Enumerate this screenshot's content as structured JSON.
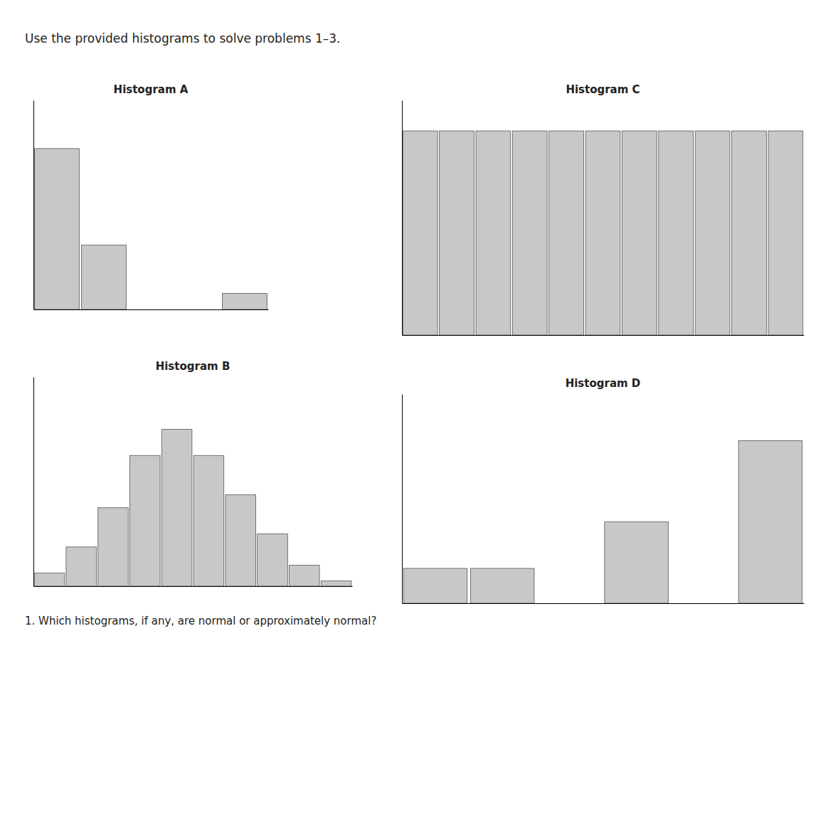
{
  "title": "Use the provided histograms to solve problems 1–3.",
  "annotations": [
    "1.  Which histograms, if any, are normal or approximately normal?"
  ],
  "chart_data": [
    {
      "type": "bar",
      "title": "Histogram A",
      "values": [
        10,
        4,
        0,
        0,
        1
      ],
      "color": "#c8c8c8",
      "ylim": [
        0,
        13
      ],
      "tick_labels": false
    },
    {
      "type": "bar",
      "title": "Histogram C",
      "values": [
        10,
        10,
        10,
        10,
        10,
        10,
        10,
        10,
        10,
        10,
        10
      ],
      "color": "#c8c8c8",
      "ylim": [
        0,
        11.5
      ],
      "tick_labels": false
    },
    {
      "type": "bar",
      "title": "Histogram B",
      "values": [
        0.5,
        1.5,
        3,
        5,
        6,
        5,
        3.5,
        2,
        0.8,
        0.2
      ],
      "color": "#c8c8c8",
      "ylim": [
        0,
        8
      ],
      "tick_labels": false
    },
    {
      "type": "bar",
      "title": "Histogram D",
      "values": [
        1.5,
        1.5,
        0,
        3.5,
        0,
        7
      ],
      "color": "#c8c8c8",
      "ylim": [
        0,
        9
      ],
      "tick_labels": false
    }
  ]
}
